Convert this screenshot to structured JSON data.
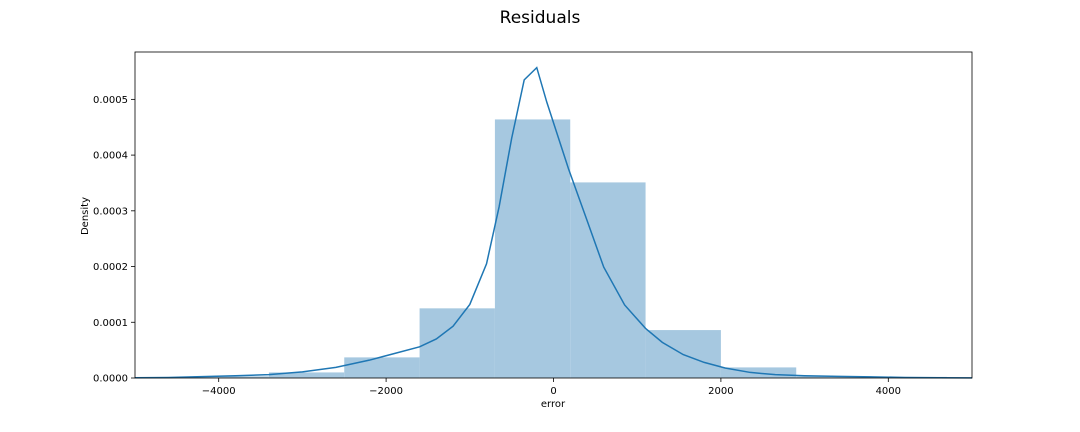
{
  "chart_data": {
    "type": "bar",
    "title": "Residuals",
    "xlabel": "error",
    "ylabel": "Density",
    "xlim": [
      -5000,
      5000
    ],
    "ylim": [
      0,
      0.000585
    ],
    "grid": false,
    "x_ticks": [
      -4000,
      -2000,
      0,
      2000,
      4000
    ],
    "x_tick_labels": [
      "−4000",
      "−2000",
      "0",
      "2000",
      "4000"
    ],
    "y_ticks": [
      0,
      0.0001,
      0.0002,
      0.0003,
      0.0004,
      0.0005
    ],
    "y_tick_labels": [
      "0.0000",
      "0.0001",
      "0.0002",
      "0.0003",
      "0.0004",
      "0.0005"
    ],
    "histogram": {
      "color": "#a6c8e0",
      "bins": [
        {
          "x0": -5200,
          "x1": -4300,
          "density": 1e-06
        },
        {
          "x0": -4300,
          "x1": -3400,
          "density": 3e-06
        },
        {
          "x0": -3400,
          "x1": -2500,
          "density": 1e-05
        },
        {
          "x0": -2500,
          "x1": -1600,
          "density": 3.7e-05
        },
        {
          "x0": -1600,
          "x1": -700,
          "density": 0.000125
        },
        {
          "x0": -700,
          "x1": 200,
          "density": 0.000464
        },
        {
          "x0": 200,
          "x1": 1100,
          "density": 0.000351
        },
        {
          "x0": 1100,
          "x1": 2000,
          "density": 8.6e-05
        },
        {
          "x0": 2000,
          "x1": 2900,
          "density": 1.9e-05
        },
        {
          "x0": 2900,
          "x1": 3800,
          "density": 3e-06
        },
        {
          "x0": 3800,
          "x1": 4700,
          "density": 2e-06
        }
      ]
    },
    "kde": {
      "color": "#1f77b4",
      "x": [
        -5000,
        -4600,
        -4200,
        -3800,
        -3400,
        -3000,
        -2600,
        -2200,
        -1900,
        -1600,
        -1400,
        -1200,
        -1000,
        -800,
        -650,
        -500,
        -350,
        -200,
        -80,
        180,
        400,
        600,
        850,
        1100,
        1300,
        1550,
        1800,
        2050,
        2350,
        2650,
        3000,
        3400,
        3800,
        4200,
        4600,
        5000
      ],
      "y": [
        5e-07,
        1e-06,
        2.5e-06,
        4e-06,
        6e-06,
        1.1e-05,
        1.9e-05,
        3.2e-05,
        4.4e-05,
        5.6e-05,
        7e-05,
        9.3e-05,
        0.000132,
        0.000205,
        0.000307,
        0.00043,
        0.000535,
        0.000557,
        0.000495,
        0.000375,
        0.000283,
        0.000199,
        0.000131,
        8.9e-05,
        6.4e-05,
        4.2e-05,
        2.8e-05,
        1.8e-05,
        1e-05,
        6e-06,
        4e-06,
        3e-06,
        2e-06,
        1e-06,
        5e-07,
        3e-07
      ]
    }
  }
}
